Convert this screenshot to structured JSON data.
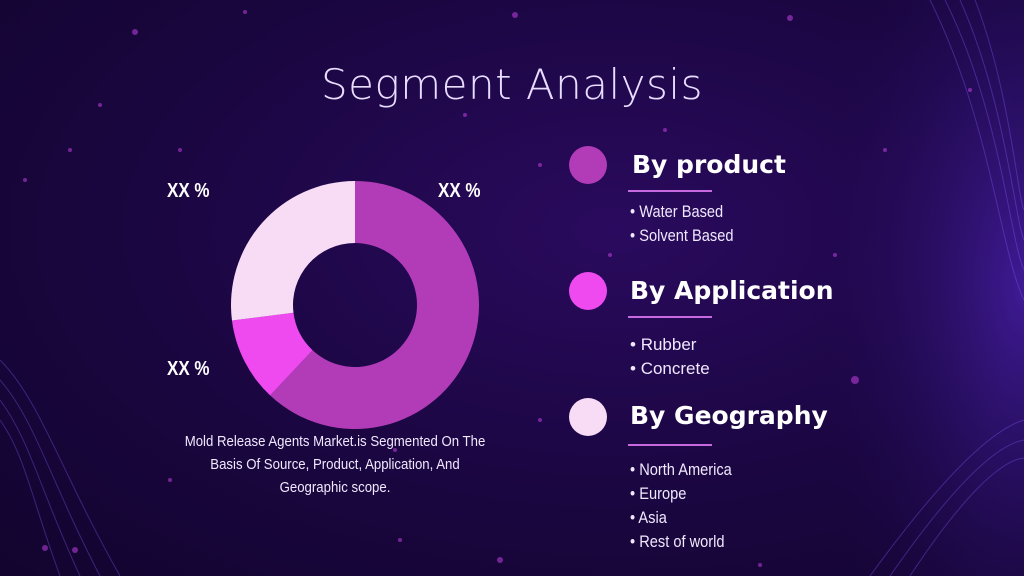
{
  "title": "Segment Analysis",
  "colors": {
    "background": "#1a0640",
    "slice_main": "#b23cb8",
    "slice_small": "#ef4af0",
    "slice_light": "#f8dcf6"
  },
  "chart_data": {
    "type": "pie",
    "categories": [
      "",
      "",
      ""
    ],
    "values": [
      62,
      11,
      27
    ],
    "data_labels": [
      "XX %",
      "XX %",
      "XX %"
    ],
    "donut": true
  },
  "caption": "Mold Release Agents Market.is Segmented On The Basis Of Source, Product, Application, And Geographic scope.",
  "segments": [
    {
      "heading": "By product",
      "items": [
        "Water Based",
        "Solvent Based"
      ]
    },
    {
      "heading": "By Application",
      "items": [
        "Rubber",
        "Concrete"
      ]
    },
    {
      "heading": "By Geography",
      "items": [
        "North America",
        "Europe",
        "Asia",
        "Rest of world"
      ]
    }
  ]
}
